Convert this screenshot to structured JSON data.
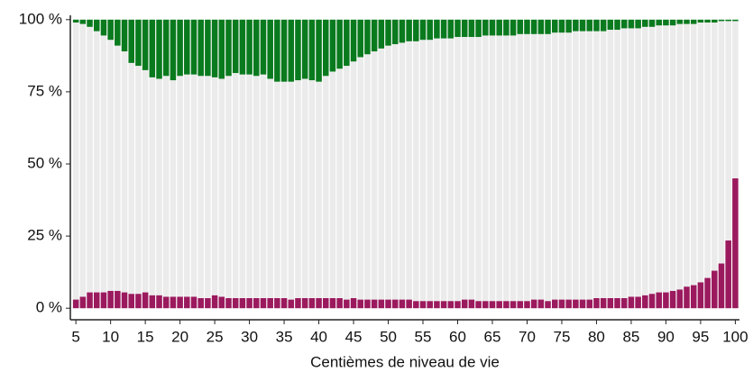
{
  "chart_data": {
    "type": "stacked-bar",
    "x_label": "Centièmes de niveau de vie",
    "x": [
      5,
      6,
      7,
      8,
      9,
      10,
      11,
      12,
      13,
      14,
      15,
      16,
      17,
      18,
      19,
      20,
      21,
      22,
      23,
      24,
      25,
      26,
      27,
      28,
      29,
      30,
      31,
      32,
      33,
      34,
      35,
      36,
      37,
      38,
      39,
      40,
      41,
      42,
      43,
      44,
      45,
      46,
      47,
      48,
      49,
      50,
      51,
      52,
      53,
      54,
      55,
      56,
      57,
      58,
      59,
      60,
      61,
      62,
      63,
      64,
      65,
      66,
      67,
      68,
      69,
      70,
      71,
      72,
      73,
      74,
      75,
      76,
      77,
      78,
      79,
      80,
      81,
      82,
      83,
      84,
      85,
      86,
      87,
      88,
      89,
      90,
      91,
      92,
      93,
      94,
      95,
      96,
      97,
      98,
      99,
      100
    ],
    "series": [
      {
        "color": "#9b1a5e",
        "values": [
          3,
          4,
          5.5,
          5.5,
          5.5,
          6,
          6,
          5.5,
          5,
          5,
          5.5,
          4.5,
          4.5,
          4,
          4,
          4,
          4,
          4,
          3.5,
          3.5,
          4.5,
          4,
          3.5,
          3.5,
          3.5,
          3.5,
          3.5,
          3.5,
          3.5,
          3.5,
          3.5,
          3,
          3.5,
          3.5,
          3.5,
          3.5,
          3.5,
          3.5,
          3.5,
          3,
          3.5,
          3,
          3,
          3,
          3,
          3,
          3,
          3,
          3,
          2.5,
          2.5,
          2.5,
          2.5,
          2.5,
          2.5,
          2.5,
          3,
          3,
          2.5,
          2.5,
          2.5,
          2.5,
          2.5,
          2.5,
          2.5,
          2.5,
          3,
          3,
          2.5,
          3,
          3,
          3,
          3,
          3,
          3,
          3.5,
          3.5,
          3.5,
          3.5,
          3.5,
          4,
          4,
          4.5,
          5,
          5.5,
          5.5,
          6,
          6.5,
          7.5,
          8,
          9,
          10.5,
          13,
          15.5,
          23.5,
          45
        ]
      },
      {
        "color": "#ebebeb",
        "values": [
          96,
          94.5,
          92,
          90.5,
          89,
          87,
          85,
          83.5,
          80,
          79,
          77,
          75.5,
          75,
          76.5,
          75,
          76.5,
          77,
          77,
          77,
          77,
          75.5,
          75.5,
          77,
          78,
          77.5,
          77.5,
          77,
          77.5,
          76,
          75,
          75,
          75.5,
          75.5,
          76,
          75.5,
          75,
          77,
          78.5,
          79.5,
          81,
          82,
          84,
          85,
          86,
          87,
          88,
          88.5,
          89,
          89.5,
          90,
          90.5,
          90.5,
          91,
          91,
          91,
          91.5,
          91,
          91,
          91.5,
          92,
          92,
          92,
          92,
          92,
          92.5,
          92.5,
          92,
          92,
          92.5,
          92.5,
          92.5,
          92.5,
          93,
          93,
          93,
          92.5,
          92.5,
          93,
          93,
          93.5,
          93,
          93,
          93,
          92.5,
          92.5,
          92.5,
          92,
          92,
          91,
          90.5,
          90,
          88.5,
          86,
          84,
          76,
          54.5
        ]
      },
      {
        "color": "#0a7a1e",
        "values": [
          1,
          1.5,
          2.5,
          4,
          5.5,
          7,
          9,
          11,
          15,
          16,
          17.5,
          20,
          20.5,
          19.5,
          21,
          19.5,
          19,
          19,
          19.5,
          19.5,
          20,
          20.5,
          19.5,
          18.5,
          19,
          19,
          19.5,
          19,
          20.5,
          21.5,
          21.5,
          21.5,
          21,
          20.5,
          21,
          21.5,
          19.5,
          18,
          17,
          16,
          14.5,
          13,
          12,
          11,
          10,
          9,
          8.5,
          8,
          7.5,
          7.5,
          7,
          7,
          6.5,
          6.5,
          6.5,
          6,
          6,
          6,
          6,
          5.5,
          5.5,
          5.5,
          5.5,
          5.5,
          5,
          5,
          5,
          5,
          5,
          4.5,
          4.5,
          4.5,
          4,
          4,
          4,
          4,
          4,
          3.5,
          3.5,
          3,
          3,
          3,
          2.5,
          2.5,
          2,
          2,
          2,
          1.5,
          1.5,
          1.5,
          1,
          1,
          1,
          0.5,
          0.5,
          0.5
        ]
      }
    ],
    "xlim": [
      4.2,
      100.6
    ],
    "xticks": [
      5,
      10,
      15,
      20,
      25,
      30,
      35,
      40,
      45,
      50,
      55,
      60,
      65,
      70,
      75,
      80,
      85,
      90,
      95,
      100
    ],
    "ylim": [
      -4,
      101.5
    ],
    "yticks": [
      {
        "value": 0,
        "label": "0 %"
      },
      {
        "value": 25,
        "label": "25 %"
      },
      {
        "value": 50,
        "label": "50 %"
      },
      {
        "value": 75,
        "label": "75 %"
      },
      {
        "value": 100,
        "label": "100 %"
      }
    ]
  }
}
